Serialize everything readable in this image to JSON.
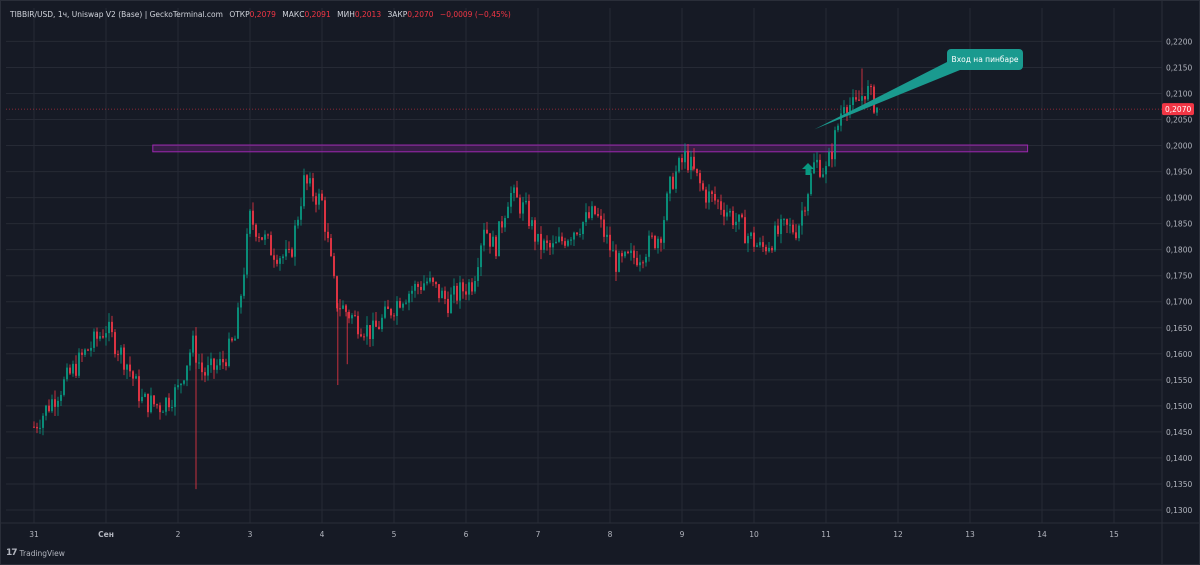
{
  "header": {
    "symbol": "TIBBIR/USD, 1ч, Uniswap V2 (Base) | GeckoTerminal.com",
    "open_label": "ОТКР",
    "open_value": "0,2079",
    "high_label": "МАКС",
    "high_value": "0,2091",
    "low_label": "МИН",
    "low_value": "0,2013",
    "close_label": "ЗАКР",
    "close_value": "0,2070",
    "change": "−0,0009 (−0,45%)"
  },
  "footer": {
    "brand": "TradingView"
  },
  "annotation": {
    "text": "Вход на пинбаре"
  },
  "current_price_label": "0,2070",
  "colors": {
    "up": "#089981",
    "down": "#f23645",
    "zone": "#9c27b0",
    "background": "#161a25",
    "grid": "#262a35",
    "callout": "#1a9a8f"
  },
  "chart_data": {
    "type": "candlestick",
    "x_axis": {
      "tick_labels": [
        "31",
        "Сен",
        "2",
        "3",
        "4",
        "5",
        "6",
        "7",
        "8",
        "9",
        "10",
        "11",
        "12",
        "13",
        "14",
        "15"
      ]
    },
    "y_axis": {
      "range": [
        0.1275,
        0.2245
      ],
      "tick_values": [
        0.13,
        0.135,
        0.14,
        0.145,
        0.15,
        0.155,
        0.16,
        0.165,
        0.17,
        0.175,
        0.18,
        0.185,
        0.19,
        0.195,
        0.2,
        0.205,
        0.21,
        0.215,
        0.22
      ],
      "tick_labels": [
        "0,1300",
        "0,1350",
        "0,1400",
        "0,1450",
        "0,1500",
        "0,1550",
        "0,1600",
        "0,1650",
        "0,1700",
        "0,1750",
        "0,1800",
        "0,1850",
        "0,1900",
        "0,1950",
        "0,2000",
        "0,2050",
        "0,2100",
        "0,2150",
        "0,2200"
      ],
      "side": "right"
    },
    "current_price": 0.207,
    "zone": {
      "low": 0.1988,
      "high": 0.2001,
      "day_start": 1.65,
      "day_end": 13.8
    },
    "close_keyframes": [
      [
        0,
        0.146
      ],
      [
        0.4,
        0.154
      ],
      [
        0.7,
        0.16
      ],
      [
        1.0,
        0.165
      ],
      [
        1.3,
        0.158
      ],
      [
        1.5,
        0.151
      ],
      [
        1.75,
        0.15
      ],
      [
        2.0,
        0.153
      ],
      [
        2.2,
        0.162
      ],
      [
        2.35,
        0.156
      ],
      [
        2.6,
        0.158
      ],
      [
        2.8,
        0.163
      ],
      [
        3.0,
        0.186
      ],
      [
        3.3,
        0.18
      ],
      [
        3.55,
        0.178
      ],
      [
        3.75,
        0.193
      ],
      [
        4.0,
        0.189
      ],
      [
        4.2,
        0.17
      ],
      [
        4.5,
        0.166
      ],
      [
        4.7,
        0.164
      ],
      [
        5.1,
        0.171
      ],
      [
        5.45,
        0.174
      ],
      [
        5.75,
        0.17
      ],
      [
        6.1,
        0.174
      ],
      [
        6.25,
        0.185
      ],
      [
        6.4,
        0.18
      ],
      [
        6.6,
        0.191
      ],
      [
        6.85,
        0.187
      ],
      [
        7.0,
        0.181
      ],
      [
        7.2,
        0.18
      ],
      [
        7.5,
        0.184
      ],
      [
        7.8,
        0.187
      ],
      [
        8.1,
        0.177
      ],
      [
        8.4,
        0.179
      ],
      [
        8.7,
        0.183
      ],
      [
        8.85,
        0.193
      ],
      [
        9.05,
        0.198
      ],
      [
        9.3,
        0.191
      ],
      [
        9.6,
        0.188
      ],
      [
        9.9,
        0.183
      ],
      [
        10.1,
        0.18
      ],
      [
        10.4,
        0.184
      ],
      [
        10.6,
        0.184
      ],
      [
        10.85,
        0.197
      ],
      [
        11.0,
        0.195
      ],
      [
        11.1,
        0.2
      ],
      [
        11.25,
        0.209
      ],
      [
        11.4,
        0.207
      ],
      [
        11.55,
        0.211
      ],
      [
        11.72,
        0.207
      ]
    ],
    "spikes": [
      {
        "day": 2.25,
        "low": 0.134
      },
      {
        "day": 4.22,
        "low": 0.154
      },
      {
        "day": 4.35,
        "low": 0.158
      },
      {
        "day": 11.5,
        "high": 0.2148
      },
      {
        "day": 9.15,
        "high": 0.196
      }
    ],
    "entry_arrow": {
      "day": 10.75,
      "price": 0.1955
    },
    "callout_target": {
      "day": 10.7,
      "price": 0.2035
    }
  }
}
